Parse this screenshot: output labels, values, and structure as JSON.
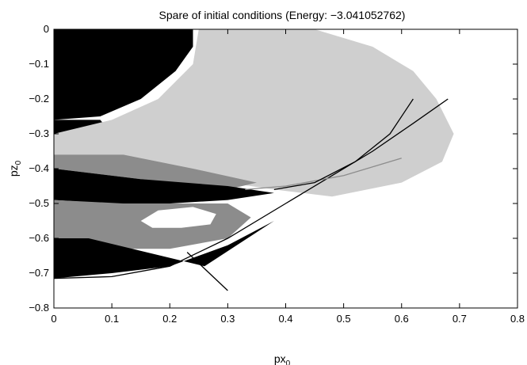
{
  "chart_data": {
    "type": "heatmap",
    "title": "Spare of initial conditions (Energy: −3.041052762)",
    "xlabel": "px",
    "xlabel_sub": "0",
    "ylabel": "pz",
    "ylabel_sub": "0",
    "xlim": [
      0,
      0.8
    ],
    "ylim": [
      -0.8,
      0
    ],
    "x_ticks": [
      0,
      0.1,
      0.2,
      0.3,
      0.4,
      0.5,
      0.6,
      0.7,
      0.8
    ],
    "x_tick_labels": [
      "0",
      "0.1",
      "0.2",
      "0.3",
      "0.4",
      "0.5",
      "0.6",
      "0.7",
      "0.8"
    ],
    "y_ticks": [
      0,
      -0.1,
      -0.2,
      -0.3,
      -0.4,
      -0.5,
      -0.6,
      -0.7,
      -0.8
    ],
    "y_tick_labels": [
      "0",
      "−0.1",
      "−0.2",
      "−0.3",
      "−0.4",
      "−0.5",
      "−0.6",
      "−0.7",
      "−0.8"
    ],
    "grid": false,
    "colors": {
      "black": "#000000",
      "gray": "#8c8c8c",
      "light": "#cfcfcf",
      "background": "#ffffff"
    },
    "regions": [
      {
        "name": "black-top",
        "color": "black",
        "points": [
          [
            0,
            0
          ],
          [
            0.24,
            0
          ],
          [
            0.24,
            -0.05
          ],
          [
            0.21,
            -0.12
          ],
          [
            0.15,
            -0.2
          ],
          [
            0.08,
            -0.25
          ],
          [
            0,
            -0.26
          ]
        ]
      },
      {
        "name": "black-left",
        "color": "black",
        "points": [
          [
            0,
            -0.26
          ],
          [
            0.08,
            -0.26
          ],
          [
            0.1,
            -0.3
          ],
          [
            0.04,
            -0.37
          ],
          [
            0,
            -0.38
          ]
        ]
      },
      {
        "name": "light-fan",
        "color": "light",
        "points": [
          [
            0.25,
            0
          ],
          [
            0.45,
            0
          ],
          [
            0.55,
            -0.05
          ],
          [
            0.62,
            -0.12
          ],
          [
            0.66,
            -0.2
          ],
          [
            0.69,
            -0.3
          ],
          [
            0.67,
            -0.38
          ],
          [
            0.6,
            -0.44
          ],
          [
            0.48,
            -0.48
          ],
          [
            0.38,
            -0.46
          ],
          [
            0.22,
            -0.42
          ],
          [
            0.1,
            -0.4
          ],
          [
            0,
            -0.38
          ],
          [
            0,
            -0.3
          ],
          [
            0.1,
            -0.26
          ],
          [
            0.18,
            -0.2
          ],
          [
            0.24,
            -0.1
          ]
        ]
      },
      {
        "name": "gray-bands",
        "color": "gray",
        "points": [
          [
            0,
            -0.36
          ],
          [
            0.12,
            -0.36
          ],
          [
            0.24,
            -0.4
          ],
          [
            0.35,
            -0.44
          ],
          [
            0.3,
            -0.46
          ],
          [
            0.15,
            -0.43
          ],
          [
            0,
            -0.4
          ]
        ]
      },
      {
        "name": "black-bands",
        "color": "black",
        "points": [
          [
            0,
            -0.4
          ],
          [
            0.15,
            -0.43
          ],
          [
            0.3,
            -0.45
          ],
          [
            0.38,
            -0.47
          ],
          [
            0.3,
            -0.49
          ],
          [
            0.2,
            -0.5
          ],
          [
            0.1,
            -0.5
          ],
          [
            0,
            -0.49
          ]
        ]
      },
      {
        "name": "gray-lower",
        "color": "gray",
        "points": [
          [
            0,
            -0.49
          ],
          [
            0.12,
            -0.5
          ],
          [
            0.3,
            -0.5
          ],
          [
            0.34,
            -0.54
          ],
          [
            0.3,
            -0.6
          ],
          [
            0.2,
            -0.63
          ],
          [
            0.1,
            -0.63
          ],
          [
            0,
            -0.62
          ]
        ]
      },
      {
        "name": "black-bottom",
        "color": "black",
        "points": [
          [
            0,
            -0.6
          ],
          [
            0.06,
            -0.6
          ],
          [
            0.16,
            -0.64
          ],
          [
            0.26,
            -0.68
          ],
          [
            0.38,
            -0.55
          ],
          [
            0.3,
            -0.62
          ],
          [
            0.2,
            -0.68
          ],
          [
            0.1,
            -0.7
          ],
          [
            0,
            -0.715
          ]
        ]
      },
      {
        "name": "white-eye",
        "color": "background",
        "points": [
          [
            0.15,
            -0.55
          ],
          [
            0.18,
            -0.52
          ],
          [
            0.24,
            -0.51
          ],
          [
            0.28,
            -0.53
          ],
          [
            0.27,
            -0.56
          ],
          [
            0.22,
            -0.57
          ],
          [
            0.17,
            -0.57
          ]
        ]
      }
    ],
    "curves": [
      {
        "name": "needle-line",
        "color": "black",
        "points": [
          [
            0.23,
            -0.64
          ],
          [
            0.3,
            -0.75
          ]
        ]
      },
      {
        "name": "boundary-curve",
        "color": "black",
        "points": [
          [
            0,
            -0.715
          ],
          [
            0.1,
            -0.71
          ],
          [
            0.2,
            -0.68
          ],
          [
            0.3,
            -0.6
          ],
          [
            0.4,
            -0.5
          ],
          [
            0.47,
            -0.43
          ],
          [
            0.55,
            -0.35
          ],
          [
            0.62,
            -0.27
          ],
          [
            0.68,
            -0.2
          ]
        ]
      },
      {
        "name": "streak-1",
        "color": "gray",
        "points": [
          [
            0.33,
            -0.46
          ],
          [
            0.4,
            -0.45
          ],
          [
            0.5,
            -0.42
          ],
          [
            0.6,
            -0.37
          ]
        ]
      },
      {
        "name": "streak-2",
        "color": "black",
        "points": [
          [
            0.38,
            -0.46
          ],
          [
            0.45,
            -0.44
          ],
          [
            0.52,
            -0.38
          ],
          [
            0.58,
            -0.3
          ],
          [
            0.62,
            -0.2
          ]
        ]
      }
    ]
  }
}
